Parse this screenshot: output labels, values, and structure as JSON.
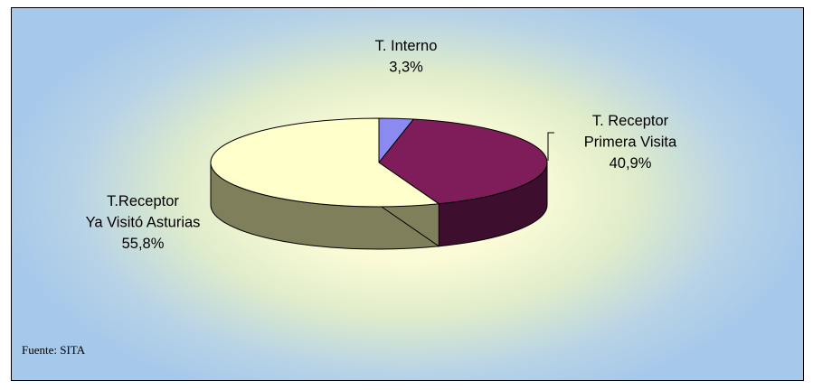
{
  "source_note": "Fuente: SITA",
  "chart_data": {
    "type": "pie",
    "title": "",
    "three_d": true,
    "slices": [
      {
        "label_lines": [
          "T. Interno",
          "3,3%"
        ],
        "label": "T. Interno",
        "value": 3.3,
        "value_label": "3,3%",
        "color": "#8a8af0",
        "side_color": "#4a4ab0"
      },
      {
        "label_lines": [
          "T. Receptor",
          "Primera Visita",
          "40,9%"
        ],
        "label": "T. Receptor Primera Visita",
        "value": 40.9,
        "value_label": "40,9%",
        "color": "#7e1d5a",
        "side_color": "#3e0e2e"
      },
      {
        "label_lines": [
          "T.Receptor",
          "Ya Visitó Asturias",
          "55,8%"
        ],
        "label": "T.Receptor Ya Visitó Asturias",
        "value": 55.8,
        "value_label": "55,8%",
        "color": "#ffffcc",
        "side_color": "#7f7f5c"
      }
    ],
    "legend": "none"
  }
}
